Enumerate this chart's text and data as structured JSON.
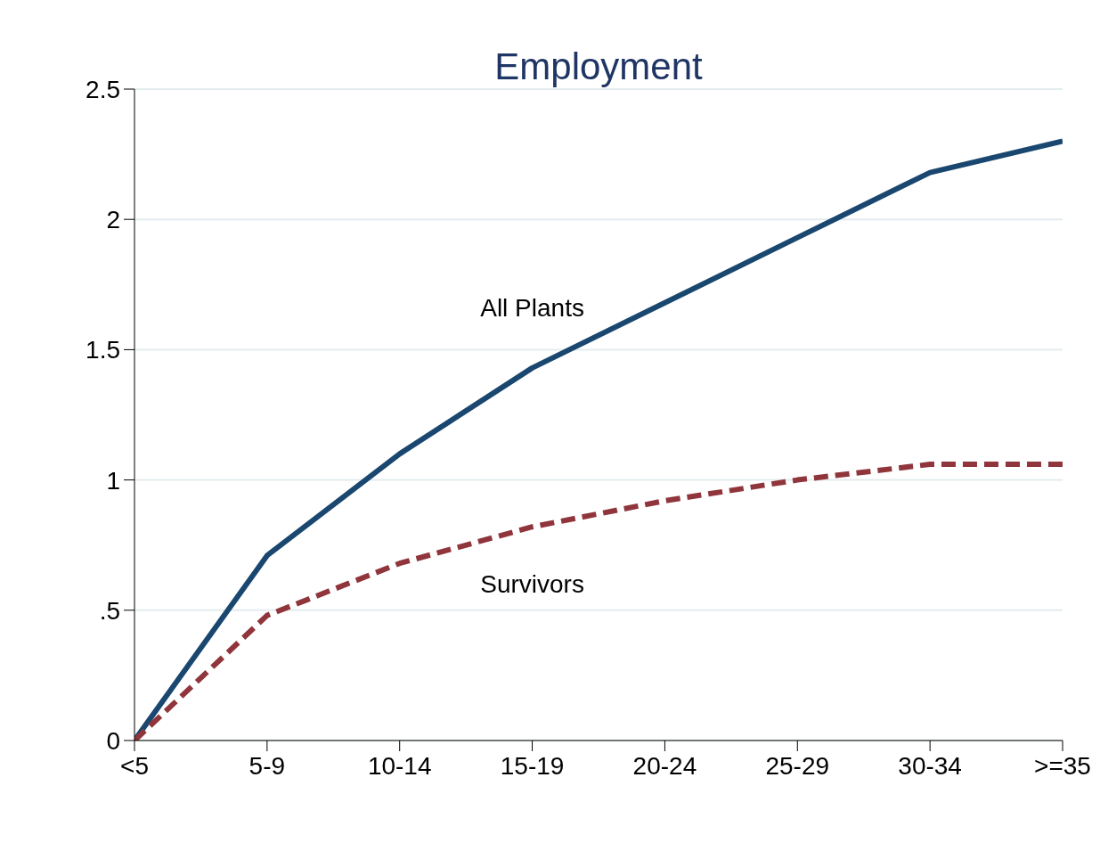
{
  "chart_data": {
    "type": "line",
    "title": "Employment",
    "categories": [
      "<5",
      "5-9",
      "10-14",
      "15-19",
      "20-24",
      "25-29",
      "30-34",
      ">=35"
    ],
    "series": [
      {
        "name": "All Plants",
        "color": "#1a476f",
        "line_style": "solid",
        "values": [
          0,
          0.71,
          1.1,
          1.43,
          1.68,
          1.93,
          2.18,
          2.3
        ]
      },
      {
        "name": "Survivors",
        "color": "#90353b",
        "line_style": "dashed",
        "values": [
          0,
          0.48,
          0.68,
          0.82,
          0.92,
          1.0,
          1.06,
          1.06
        ]
      }
    ],
    "ylim": [
      0,
      2.5
    ],
    "yticks": [
      0,
      {
        "value": 0.5,
        "label": ".5"
      },
      1,
      1.5,
      2,
      2.5
    ],
    "grid": "y",
    "legend": false,
    "marker": "none"
  }
}
